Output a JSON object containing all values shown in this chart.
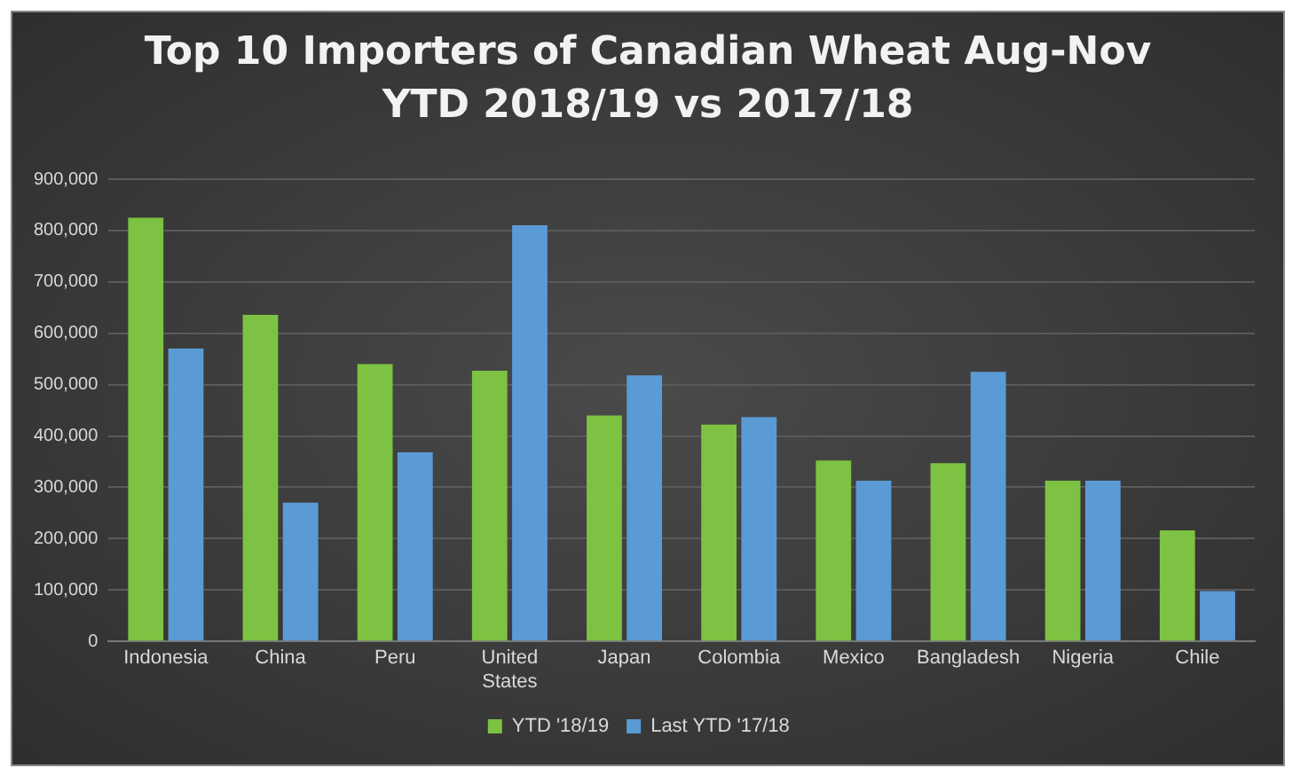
{
  "chart_data": {
    "type": "bar",
    "title": "Top 10 Importers of Canadian Wheat Aug-Nov YTD 2018/19 vs 2017/18",
    "categories": [
      "Indonesia",
      "China",
      "Peru",
      "United States",
      "Japan",
      "Colombia",
      "Mexico",
      "Bangladesh",
      "Nigeria",
      "Chile"
    ],
    "series": [
      {
        "name": "YTD '18/19",
        "color": "#7dc242",
        "values": [
          825000,
          636000,
          540000,
          527000,
          440000,
          422000,
          352000,
          347000,
          313000,
          216000
        ]
      },
      {
        "name": "Last YTD '17/18",
        "color": "#5b9bd5",
        "values": [
          570000,
          270000,
          368000,
          810000,
          518000,
          437000,
          313000,
          525000,
          313000,
          98000
        ]
      }
    ],
    "ylim": [
      0,
      900000
    ],
    "yticks": [
      0,
      {
        "value": 100000,
        "label": "100,000"
      },
      {
        "value": 200000,
        "label": "200,000"
      },
      {
        "value": 300000,
        "label": "300,000"
      },
      {
        "value": 400000,
        "label": "400,000"
      },
      {
        "value": 500000,
        "label": "500,000"
      },
      {
        "value": 600000,
        "label": "600,000"
      },
      {
        "value": 700000,
        "label": "700,000"
      },
      {
        "value": 800000,
        "label": "800,000"
      },
      {
        "value": 900000,
        "label": "900,000"
      }
    ],
    "grid": "y",
    "legend": "bottom"
  }
}
